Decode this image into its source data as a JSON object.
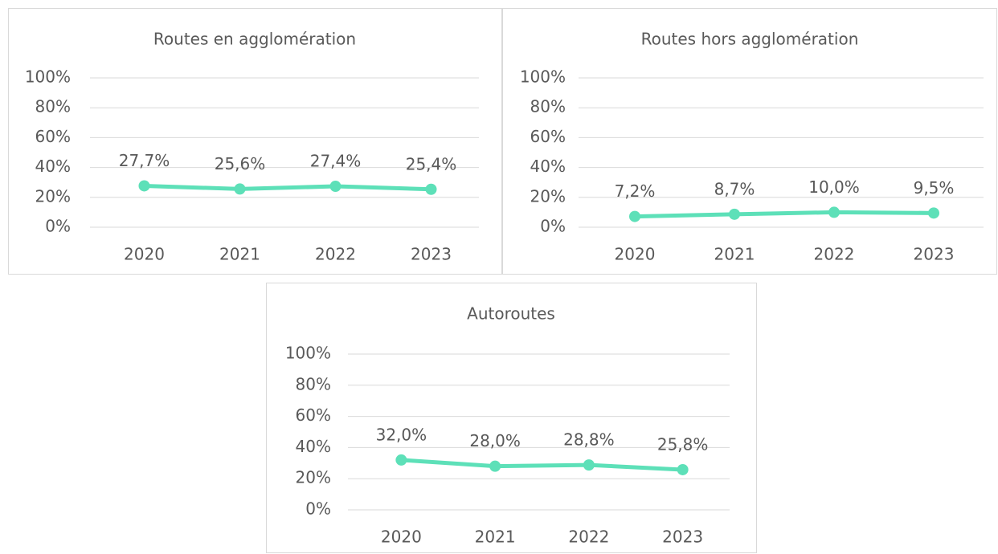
{
  "chart_data": [
    {
      "type": "line",
      "title": "Routes en agglomération",
      "categories": [
        "2020",
        "2021",
        "2022",
        "2023"
      ],
      "values": [
        27.7,
        25.6,
        27.4,
        25.4
      ],
      "value_labels": [
        "27,7%",
        "25,6%",
        "27,4%",
        "25,4%"
      ],
      "color": "#5de0b8",
      "ylim": [
        0,
        100
      ],
      "yticks": [
        {
          "value": 0,
          "label": "0%"
        },
        {
          "value": 20,
          "label": "20%"
        },
        {
          "value": 40,
          "label": "40%"
        },
        {
          "value": 60,
          "label": "60%"
        },
        {
          "value": 80,
          "label": "80%"
        },
        {
          "value": 100,
          "label": "100%"
        }
      ],
      "grid": true
    },
    {
      "type": "line",
      "title": "Routes hors agglomération",
      "categories": [
        "2020",
        "2021",
        "2022",
        "2023"
      ],
      "values": [
        7.2,
        8.7,
        10.0,
        9.5
      ],
      "value_labels": [
        "7,2%",
        "8,7%",
        "10,0%",
        "9,5%"
      ],
      "color": "#5de0b8",
      "ylim": [
        0,
        100
      ],
      "yticks": [
        {
          "value": 0,
          "label": "0%"
        },
        {
          "value": 20,
          "label": "20%"
        },
        {
          "value": 40,
          "label": "40%"
        },
        {
          "value": 60,
          "label": "60%"
        },
        {
          "value": 80,
          "label": "80%"
        },
        {
          "value": 100,
          "label": "100%"
        }
      ],
      "grid": true
    },
    {
      "type": "line",
      "title": "Autoroutes",
      "categories": [
        "2020",
        "2021",
        "2022",
        "2023"
      ],
      "values": [
        32.0,
        28.0,
        28.8,
        25.8
      ],
      "value_labels": [
        "32,0%",
        "28,0%",
        "28,8%",
        "25,8%"
      ],
      "color": "#5de0b8",
      "ylim": [
        0,
        100
      ],
      "yticks": [
        {
          "value": 0,
          "label": "0%"
        },
        {
          "value": 20,
          "label": "20%"
        },
        {
          "value": 40,
          "label": "40%"
        },
        {
          "value": 60,
          "label": "60%"
        },
        {
          "value": 80,
          "label": "80%"
        },
        {
          "value": 100,
          "label": "100%"
        }
      ],
      "grid": true
    }
  ]
}
